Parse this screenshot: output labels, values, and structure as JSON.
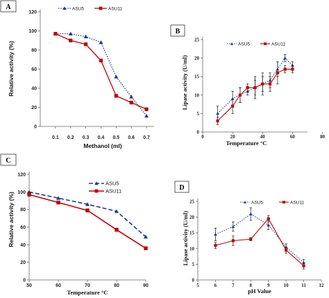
{
  "colors": {
    "blue": "#1f3a93",
    "red": "#c00000",
    "axis": "#666666"
  },
  "chart_data": [
    {
      "id": "A",
      "type": "line",
      "panel_label": "A",
      "xlabel": "Methanol (ml)",
      "ylabel": "Relative activity (%)",
      "categories": [
        "0.1",
        "0.2",
        "0.3",
        "0.4",
        "0.5",
        "0.6",
        "0.7"
      ],
      "x": [
        0.1,
        0.2,
        0.3,
        0.4,
        0.5,
        0.6,
        0.7
      ],
      "xlim": [
        0,
        0.75
      ],
      "ylim": [
        0,
        120
      ],
      "yticks": [
        "0",
        "20",
        "40",
        "60",
        "80",
        "100",
        "120"
      ],
      "legend": "top-right",
      "series": [
        {
          "name": "ASU5",
          "values": [
            97,
            97,
            94,
            88,
            52,
            31,
            11
          ]
        },
        {
          "name": "ASU11",
          "values": [
            97,
            90,
            86,
            69,
            32,
            25,
            18
          ]
        }
      ]
    },
    {
      "id": "B",
      "type": "line",
      "panel_label": "B",
      "xlabel": "Temperature °C",
      "ylabel": "Lipase activity (U/ml)",
      "xlim": [
        0,
        70
      ],
      "ylim": [
        0,
        25
      ],
      "xticks": [
        "0",
        "20",
        "40",
        "60",
        "80"
      ],
      "yticks": [
        "0",
        "5",
        "10",
        "15",
        "20",
        "25"
      ],
      "legend": "top-center",
      "series": [
        {
          "name": "ASU5",
          "x": [
            10,
            20,
            25,
            30,
            35,
            40,
            45,
            50,
            55,
            60
          ],
          "values": [
            5,
            9,
            10,
            11,
            12,
            13,
            14,
            17,
            20,
            18
          ],
          "error": [
            2,
            2,
            2,
            1,
            2,
            2,
            2,
            2,
            1,
            1
          ]
        },
        {
          "name": "ASU11",
          "x": [
            10,
            20,
            25,
            30,
            35,
            40,
            45,
            50,
            55,
            60
          ],
          "values": [
            3,
            7,
            10,
            12,
            12,
            13,
            13,
            16,
            17,
            17
          ],
          "error": [
            1,
            2,
            2,
            1,
            3,
            3,
            2,
            3,
            1,
            1
          ]
        }
      ]
    },
    {
      "id": "C",
      "type": "line",
      "panel_label": "C",
      "xlabel": "Temperature °C",
      "ylabel": "Relative activity (%)",
      "xlim": [
        50,
        90
      ],
      "ylim": [
        0,
        120
      ],
      "xticks": [
        "50",
        "60",
        "70",
        "80",
        "90"
      ],
      "yticks": [
        "0",
        "20",
        "40",
        "60",
        "80",
        "100",
        "120"
      ],
      "legend": "top-right",
      "series": [
        {
          "name": "ASU5",
          "x": [
            50,
            60,
            70,
            80,
            90
          ],
          "values": [
            100,
            93,
            86,
            78,
            49
          ]
        },
        {
          "name": "ASU11",
          "x": [
            50,
            60,
            70,
            80,
            90
          ],
          "values": [
            97,
            88,
            79,
            57,
            36
          ]
        }
      ]
    },
    {
      "id": "D",
      "type": "line",
      "panel_label": "D",
      "xlabel": "pH Value",
      "ylabel": "Lipase activity (U/ml)",
      "xlim": [
        5,
        12
      ],
      "ylim": [
        0,
        25
      ],
      "xticks": [
        "5",
        "6",
        "7",
        "8",
        "9",
        "10",
        "11",
        "12"
      ],
      "yticks": [
        "0",
        "5",
        "10",
        "15",
        "20",
        "25"
      ],
      "legend": "top-center",
      "series": [
        {
          "name": "ASU5",
          "x": [
            6,
            7,
            8,
            9,
            10,
            11
          ],
          "values": [
            14.5,
            17,
            21,
            17.5,
            10.5,
            5.5
          ],
          "error": [
            2,
            1.5,
            2,
            1.5,
            1,
            1
          ]
        },
        {
          "name": "ASU11",
          "x": [
            6,
            7,
            8,
            9,
            10,
            11
          ],
          "values": [
            11,
            12.5,
            13,
            19.5,
            9.5,
            4.5
          ],
          "error": [
            1,
            1.5,
            0.5,
            1,
            1,
            1
          ]
        }
      ]
    }
  ]
}
